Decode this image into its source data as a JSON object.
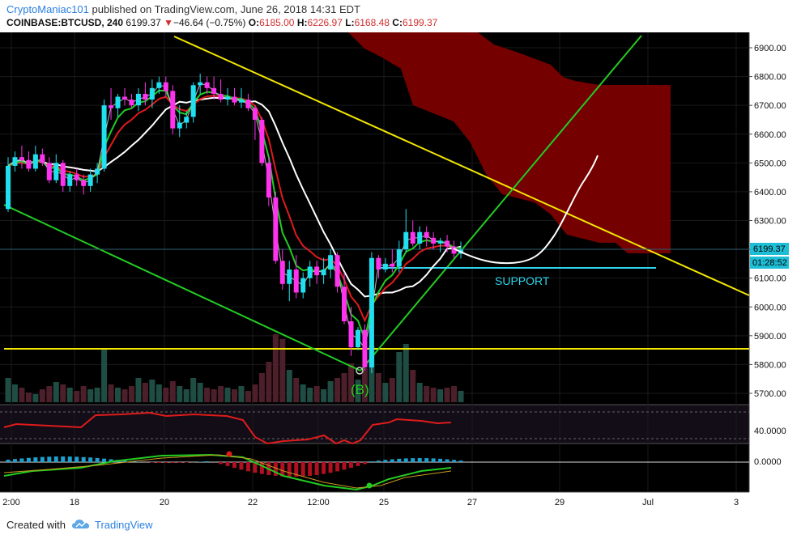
{
  "header": {
    "author": "CryptoManiac101",
    "published": " published on TradingView.com, June 26, 2018 14:31 EDT",
    "symbol": "COINBASE:BTCUSD, 240",
    "last": "6199.37",
    "change": "−46.64 (−0.75%)",
    "o_label": "O:",
    "o_value": "6185.00",
    "h_label": "H:",
    "h_value": "6226.97",
    "l_label": "L:",
    "l_value": "6168.48",
    "c_label": "C:",
    "c_value": "6199.37"
  },
  "footer": {
    "created_with": "Created with",
    "brand": "TradingView"
  },
  "chart_data": {
    "type": "candlestick",
    "ylim": [
      5650,
      6950
    ],
    "y_ticks": [
      "6900.00",
      "6800.00",
      "6700.00",
      "6600.00",
      "6500.00",
      "6400.00",
      "6300.00",
      "6200.00",
      "6100.00",
      "6000.00",
      "5900.00",
      "5800.00",
      "5700.00"
    ],
    "x_ticks": [
      "2:00",
      "18",
      "20",
      "22",
      "12:00",
      "25",
      "27",
      "29",
      "Jul",
      "3"
    ],
    "price_label": "6199.37",
    "countdown_label": "01:28:52",
    "support_label": "SUPPORT",
    "wave_label": "(B)",
    "rsi_tick": "40.0000",
    "macd_tick": "0.0000",
    "support_level": 6135,
    "horizontal_level": 5850,
    "candles": [
      [
        6340,
        6520,
        6330,
        6490
      ],
      [
        6490,
        6540,
        6470,
        6520
      ],
      [
        6520,
        6560,
        6480,
        6510
      ],
      [
        6510,
        6540,
        6470,
        6480
      ],
      [
        6480,
        6560,
        6470,
        6530
      ],
      [
        6530,
        6550,
        6490,
        6500
      ],
      [
        6500,
        6520,
        6430,
        6440
      ],
      [
        6440,
        6530,
        6430,
        6500
      ],
      [
        6500,
        6510,
        6400,
        6420
      ],
      [
        6420,
        6470,
        6400,
        6460
      ],
      [
        6460,
        6480,
        6420,
        6440
      ],
      [
        6440,
        6460,
        6390,
        6420
      ],
      [
        6420,
        6480,
        6400,
        6460
      ],
      [
        6460,
        6500,
        6430,
        6480
      ],
      [
        6480,
        6720,
        6470,
        6700
      ],
      [
        6700,
        6760,
        6650,
        6690
      ],
      [
        6690,
        6740,
        6660,
        6730
      ],
      [
        6730,
        6760,
        6700,
        6720
      ],
      [
        6720,
        6740,
        6690,
        6700
      ],
      [
        6700,
        6760,
        6680,
        6740
      ],
      [
        6740,
        6780,
        6700,
        6720
      ],
      [
        6720,
        6790,
        6690,
        6760
      ],
      [
        6760,
        6800,
        6740,
        6780
      ],
      [
        6780,
        6800,
        6730,
        6750
      ],
      [
        6750,
        6770,
        6600,
        6620
      ],
      [
        6620,
        6700,
        6590,
        6640
      ],
      [
        6640,
        6680,
        6620,
        6660
      ],
      [
        6660,
        6780,
        6640,
        6770
      ],
      [
        6770,
        6810,
        6740,
        6780
      ],
      [
        6780,
        6800,
        6740,
        6760
      ],
      [
        6760,
        6800,
        6720,
        6740
      ],
      [
        6740,
        6790,
        6710,
        6720
      ],
      [
        6720,
        6760,
        6700,
        6730
      ],
      [
        6730,
        6760,
        6700,
        6710
      ],
      [
        6710,
        6760,
        6690,
        6720
      ],
      [
        6720,
        6740,
        6680,
        6690
      ],
      [
        6690,
        6700,
        6580,
        6650
      ],
      [
        6650,
        6660,
        6490,
        6500
      ],
      [
        6500,
        6520,
        6350,
        6380
      ],
      [
        6380,
        6400,
        6150,
        6160
      ],
      [
        6160,
        6200,
        6060,
        6080
      ],
      [
        6080,
        6160,
        6020,
        6130
      ],
      [
        6130,
        6180,
        6030,
        6050
      ],
      [
        6050,
        6120,
        6030,
        6100
      ],
      [
        6100,
        6160,
        6070,
        6140
      ],
      [
        6140,
        6160,
        6080,
        6110
      ],
      [
        6110,
        6170,
        6080,
        6130
      ],
      [
        6130,
        6200,
        6100,
        6180
      ],
      [
        6180,
        6190,
        6050,
        6070
      ],
      [
        6070,
        6120,
        5940,
        5950
      ],
      [
        5950,
        6000,
        5830,
        5860
      ],
      [
        5860,
        5930,
        5850,
        5920
      ],
      [
        5920,
        5940,
        5780,
        5790
      ],
      [
        5790,
        6190,
        5770,
        6170
      ],
      [
        6170,
        6180,
        6100,
        6130
      ],
      [
        6130,
        6170,
        6120,
        6150
      ],
      [
        6150,
        6200,
        6120,
        6140
      ],
      [
        6140,
        6230,
        6120,
        6200
      ],
      [
        6200,
        6340,
        6190,
        6260
      ],
      [
        6260,
        6300,
        6210,
        6220
      ],
      [
        6220,
        6280,
        6200,
        6260
      ],
      [
        6260,
        6280,
        6210,
        6240
      ],
      [
        6240,
        6260,
        6200,
        6220
      ],
      [
        6220,
        6240,
        6190,
        6230
      ],
      [
        6230,
        6250,
        6190,
        6210
      ],
      [
        6210,
        6230,
        6170,
        6185
      ],
      [
        6185,
        6227,
        6168,
        6199
      ]
    ]
  }
}
